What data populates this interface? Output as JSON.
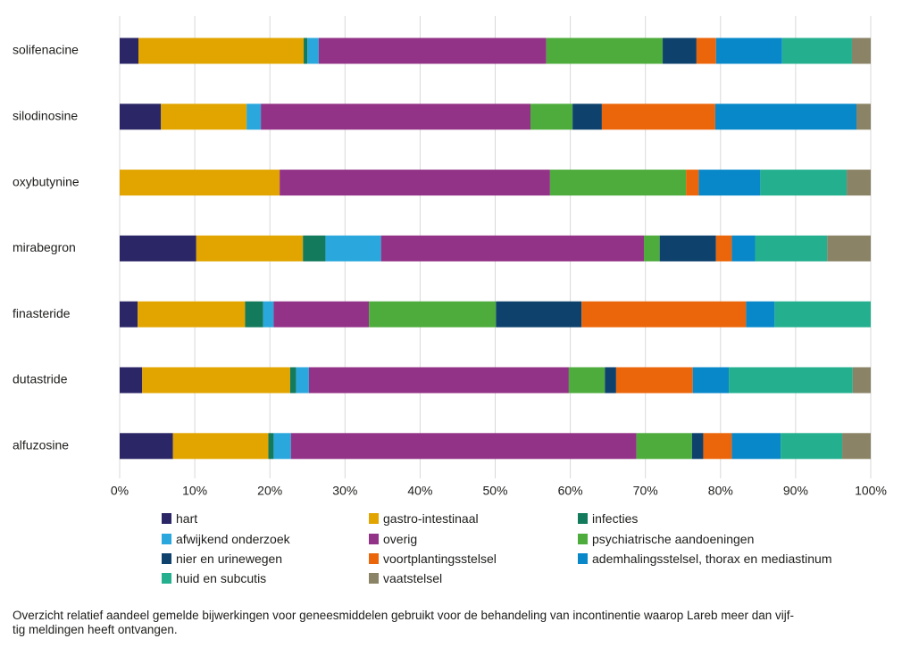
{
  "chart_data": {
    "type": "bar",
    "orientation": "horizontal",
    "stacked": "percent",
    "categories": [
      "solifenacine",
      "silodinosine",
      "oxybutynine",
      "mirabegron",
      "finasteride",
      "dutastride",
      "alfuzosine"
    ],
    "series": [
      {
        "name": "hart",
        "color": "#2b2666",
        "values": [
          2.5,
          5.5,
          0,
          10.2,
          2.4,
          3.0,
          7.1
        ]
      },
      {
        "name": "gastro-intestinaal",
        "color": "#e2a500",
        "values": [
          22.0,
          11.4,
          21.3,
          14.2,
          14.3,
          19.7,
          12.7
        ]
      },
      {
        "name": "infecties",
        "color": "#137a5c",
        "values": [
          0.5,
          0,
          0,
          3.0,
          2.4,
          0.8,
          0.7
        ]
      },
      {
        "name": "afwijkend onderzoek",
        "color": "#2aa7dc",
        "values": [
          1.5,
          1.9,
          0,
          7.4,
          1.4,
          1.7,
          2.3
        ]
      },
      {
        "name": "overig",
        "color": "#933387",
        "values": [
          30.3,
          35.9,
          36.0,
          35.0,
          12.7,
          34.6,
          46.0
        ]
      },
      {
        "name": "psychiatrische aandoeningen",
        "color": "#4dac3c",
        "values": [
          15.5,
          5.6,
          18.1,
          2.1,
          16.9,
          4.8,
          7.4
        ]
      },
      {
        "name": "nier en urinewegen",
        "color": "#0e426d",
        "values": [
          4.5,
          3.9,
          0,
          7.5,
          11.4,
          1.5,
          1.5
        ]
      },
      {
        "name": "voortplantingsstelsel",
        "color": "#eb660b",
        "values": [
          2.6,
          15.1,
          1.7,
          2.1,
          21.9,
          10.2,
          3.8
        ]
      },
      {
        "name": "ademhalingsstelsel, thorax en mediastinum",
        "color": "#0988c9",
        "values": [
          8.8,
          18.8,
          8.2,
          3.1,
          3.8,
          4.8,
          6.5
        ]
      },
      {
        "name": "huid en subcutis",
        "color": "#24b08f",
        "values": [
          9.3,
          0,
          11.5,
          9.6,
          12.8,
          16.5,
          8.2
        ]
      },
      {
        "name": "vaatstelsel",
        "color": "#8a8365",
        "values": [
          2.5,
          1.9,
          3.2,
          5.8,
          0,
          2.4,
          3.8
        ]
      }
    ],
    "xlim": [
      0,
      100
    ],
    "x_ticks": [
      "0%",
      "10%",
      "20%",
      "30%",
      "40%",
      "50%",
      "60%",
      "70%",
      "80%",
      "90%",
      "100%"
    ],
    "grid": "vertical",
    "legend": "bottom"
  },
  "caption": [
    "Overzicht relatief aandeel gemelde bijwerkingen voor geneesmiddelen gebruikt voor de behandeling van incontinentie waarop Lareb meer dan vijf-",
    "tig meldingen heeft ontvangen."
  ]
}
